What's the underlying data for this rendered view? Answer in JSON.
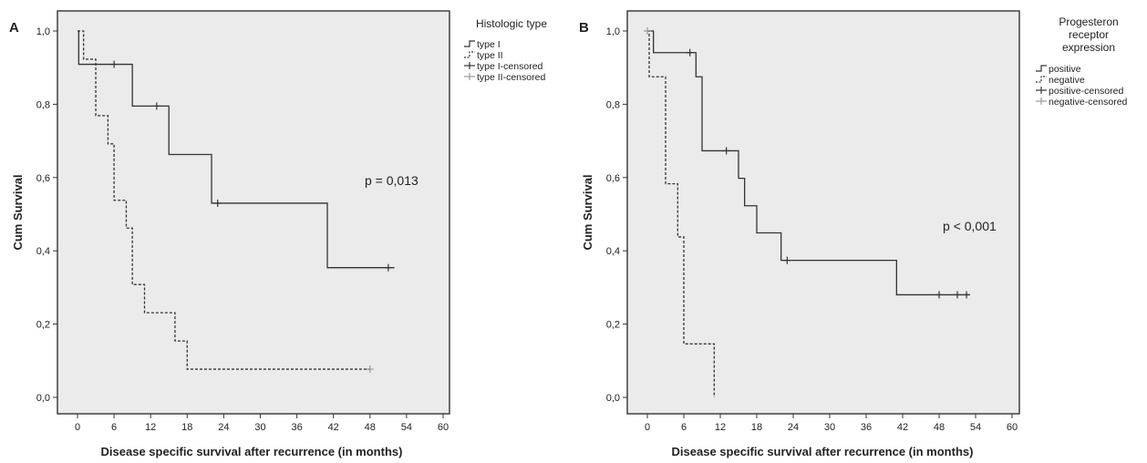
{
  "chart_data": [
    {
      "type": "line",
      "panel_label": "A",
      "xlabel": "Disease specific survival after recurrence (in months)",
      "ylabel": "Cum Survival",
      "xlim": [
        0,
        60
      ],
      "ylim": [
        0,
        1
      ],
      "xticks": [
        0,
        6,
        12,
        18,
        24,
        30,
        36,
        42,
        48,
        54,
        60
      ],
      "xtick_labels": [
        "0",
        "6",
        "12",
        "18",
        "24",
        "30",
        "36",
        "42",
        "48",
        "54",
        "60"
      ],
      "yticks": [
        0,
        0.2,
        0.4,
        0.6,
        0.8,
        1.0
      ],
      "ytick_labels": [
        "0,0",
        "0,2",
        "0,4",
        "0,6",
        "0,8",
        "1,0"
      ],
      "background": "#ebebeb",
      "legend_position": "outside-right",
      "legend_title": "Histologic type",
      "legend": [
        "type I",
        "type II",
        "type I-censored",
        "type II-censored"
      ],
      "annotation": "p = 0,013",
      "series": [
        {
          "name": "type I",
          "style": "solid",
          "color": "#333333",
          "steps": [
            [
              0,
              1.0
            ],
            [
              0.2,
              0.909
            ],
            [
              9,
              0.795
            ],
            [
              15,
              0.663
            ],
            [
              22,
              0.53
            ],
            [
              41,
              0.354
            ],
            [
              52,
              0.354
            ]
          ],
          "censored": [
            6,
            13,
            23,
            51
          ]
        },
        {
          "name": "type II",
          "style": "dashed",
          "color": "#333333",
          "steps": [
            [
              0,
              1.0
            ],
            [
              1,
              0.923
            ],
            [
              3,
              0.769
            ],
            [
              5,
              0.692
            ],
            [
              6,
              0.538
            ],
            [
              8,
              0.462
            ],
            [
              9,
              0.308
            ],
            [
              11,
              0.231
            ],
            [
              16,
              0.154
            ],
            [
              18,
              0.077
            ],
            [
              48,
              0.077
            ]
          ],
          "censored": [
            48
          ]
        }
      ]
    },
    {
      "type": "line",
      "panel_label": "B",
      "xlabel": "Disease specific survival after recurrence (in months)",
      "ylabel": "Cum Survival",
      "xlim": [
        0,
        60
      ],
      "ylim": [
        0,
        1
      ],
      "xticks": [
        0,
        6,
        12,
        18,
        24,
        30,
        36,
        42,
        48,
        54,
        60
      ],
      "xtick_labels": [
        "0",
        "6",
        "12",
        "18",
        "24",
        "30",
        "36",
        "42",
        "48",
        "54",
        "60"
      ],
      "yticks": [
        0,
        0.2,
        0.4,
        0.6,
        0.8,
        1.0
      ],
      "ytick_labels": [
        "0,0",
        "0,2",
        "0,4",
        "0,6",
        "0,8",
        "1,0"
      ],
      "background": "#ebebeb",
      "legend_position": "outside-right",
      "legend_title": [
        "Progesteron",
        "receptor",
        "expression"
      ],
      "legend": [
        "positive",
        "negative",
        "positive-censored",
        "negative-censored"
      ],
      "annotation": "p < 0,001",
      "series": [
        {
          "name": "positive",
          "style": "solid",
          "color": "#333333",
          "steps": [
            [
              0,
              1.0
            ],
            [
              1,
              0.941
            ],
            [
              8,
              0.875
            ],
            [
              9,
              0.673
            ],
            [
              15,
              0.598
            ],
            [
              16,
              0.523
            ],
            [
              18,
              0.449
            ],
            [
              22,
              0.374
            ],
            [
              41,
              0.28
            ],
            [
              53,
              0.28
            ]
          ],
          "censored": [
            7,
            13,
            23,
            48,
            51,
            52.5
          ]
        },
        {
          "name": "negative",
          "style": "dashed",
          "color": "#333333",
          "steps": [
            [
              0,
              1.0
            ],
            [
              0.3,
              0.875
            ],
            [
              3,
              0.583
            ],
            [
              5,
              0.438
            ],
            [
              6,
              0.146
            ],
            [
              11,
              0.0
            ]
          ],
          "censored": [
            0
          ]
        }
      ]
    }
  ]
}
